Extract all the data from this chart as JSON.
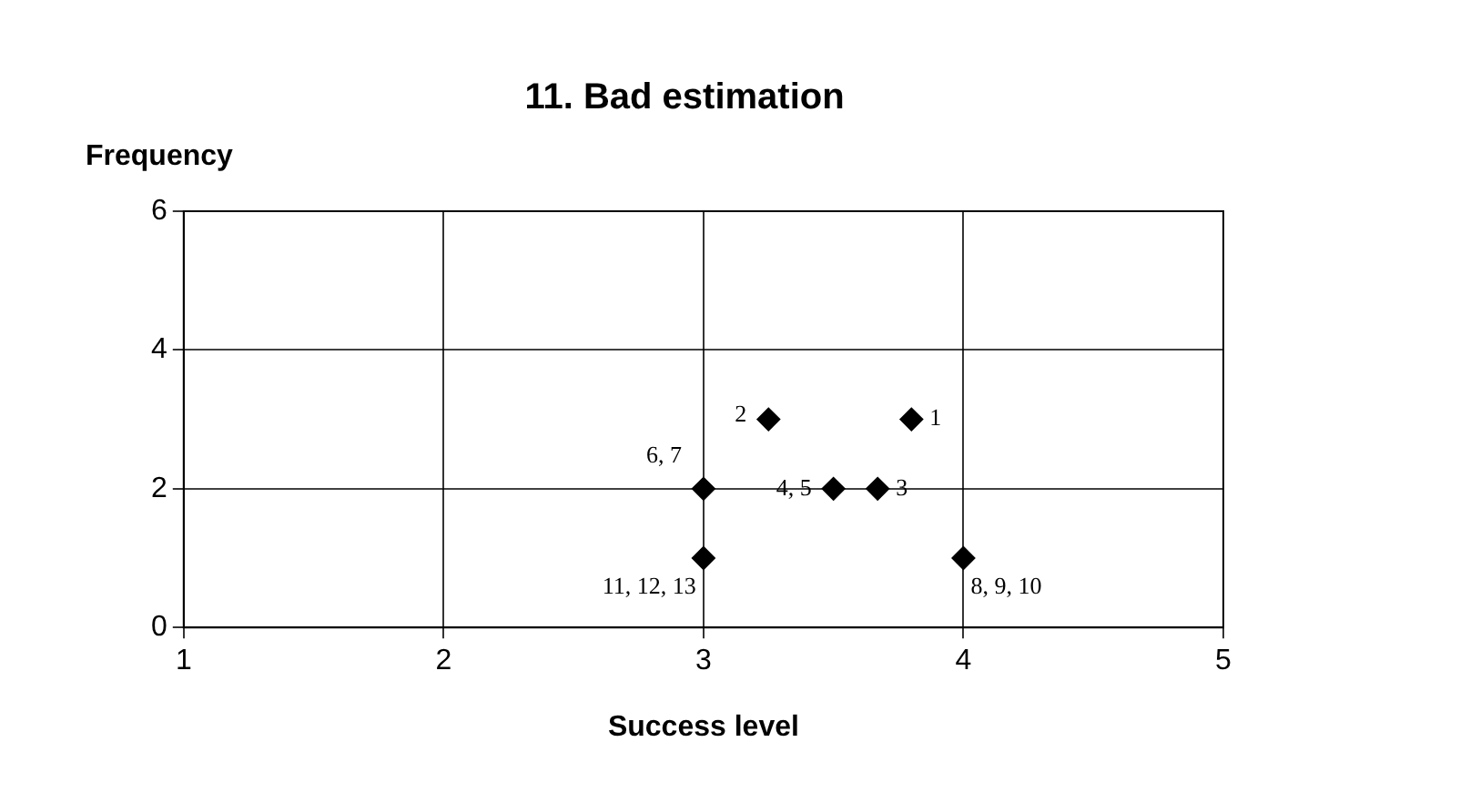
{
  "chart_data": {
    "type": "scatter",
    "title": "11. Bad estimation",
    "xlabel": "Success level",
    "ylabel": "Frequency",
    "x": [
      3.8,
      3.25,
      3.67,
      3.5,
      3,
      4,
      3
    ],
    "values": [
      3,
      3,
      2,
      2,
      2,
      1,
      1
    ],
    "color": "#000000",
    "xlim": [
      1,
      5
    ],
    "xticks": [
      1,
      2,
      3,
      4,
      5
    ],
    "ylim": [
      0,
      6
    ],
    "yticks": [
      0,
      2,
      4,
      6
    ],
    "grid": true,
    "legend": false,
    "marker": "diamond",
    "annotations": [
      {
        "text": "1",
        "x": 3.8,
        "y": 3
      },
      {
        "text": "2",
        "x": 3.25,
        "y": 3
      },
      {
        "text": "3",
        "x": 3.67,
        "y": 2
      },
      {
        "text": "4, 5",
        "x": 3.5,
        "y": 2
      },
      {
        "text": "6, 7",
        "x": 3,
        "y": 2
      },
      {
        "text": "8, 9, 10",
        "x": 4,
        "y": 1
      },
      {
        "text": "11, 12, 13",
        "x": 3,
        "y": 1
      }
    ]
  }
}
